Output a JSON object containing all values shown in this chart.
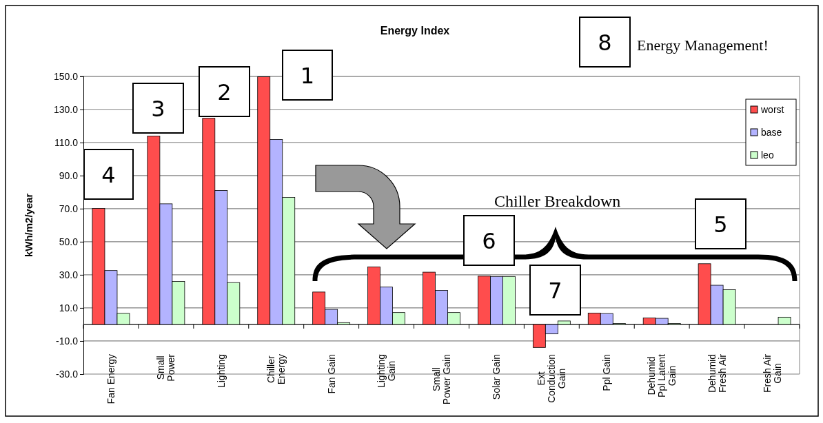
{
  "chart_data": {
    "type": "bar",
    "title": "Energy Index",
    "ylabel": "kWh/m2/year",
    "categories": [
      "Fan Energy",
      "Small Power",
      "Lighting",
      "Chiller Energy",
      "Fan Gain",
      "Lighting Gain",
      "Small Power Gain",
      "Solar Gain",
      "Ext Conduction Gain",
      "Ppl Gain",
      "Dehumid Ppl Latent Gain",
      "Dehumid Fresh Air",
      "Fresh Air Gain"
    ],
    "series": [
      {
        "name": "worst",
        "color": "#ff4d4d",
        "values": [
          70.1,
          113.9,
          124.6,
          149.7,
          19.6,
          34.8,
          31.6,
          29.2,
          -13.9,
          6.9,
          3.9,
          36.7,
          0
        ]
      },
      {
        "name": "base",
        "color": "#b3b3ff",
        "values": [
          32.6,
          72.9,
          81.0,
          111.8,
          9.1,
          22.6,
          20.6,
          29.0,
          -5.7,
          6.6,
          3.7,
          23.7,
          0
        ]
      },
      {
        "name": "leo",
        "color": "#ccffcc",
        "values": [
          6.7,
          26.0,
          25.3,
          76.8,
          1.1,
          7.2,
          7.2,
          29.0,
          2.1,
          0.6,
          0.6,
          21.0,
          4.4
        ]
      }
    ],
    "ylim": [
      -30,
      150
    ],
    "yticks": [
      {
        "value": -30,
        "label": "-30.0"
      },
      {
        "value": -10,
        "label": "-10.0"
      },
      {
        "value": 10,
        "label": "10.0"
      },
      {
        "value": 30,
        "label": "30.0"
      },
      {
        "value": 50,
        "label": "50.0"
      },
      {
        "value": 70,
        "label": "70.0"
      },
      {
        "value": 90,
        "label": "90.0"
      },
      {
        "value": 110,
        "label": "110.0"
      },
      {
        "value": 130,
        "label": "130.0"
      },
      {
        "value": 150,
        "label": "150.0"
      }
    ],
    "grid": "y",
    "legend": "top right",
    "annotations": [
      "1",
      "2",
      "3",
      "4",
      "5",
      "6",
      "7",
      "8",
      "Chiller Breakdown",
      "Energy Management!"
    ]
  }
}
